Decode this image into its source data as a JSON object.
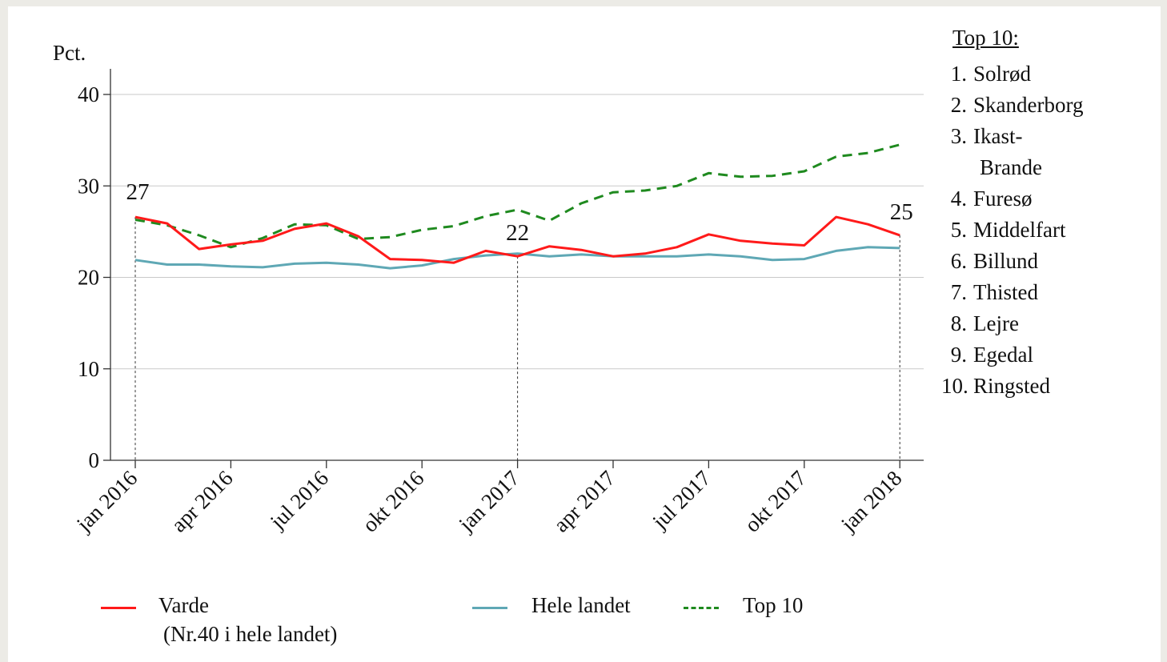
{
  "chart_data": {
    "type": "line",
    "ylabel": "Pct.",
    "ylim": [
      0,
      40
    ],
    "yticks": [
      0,
      10,
      20,
      30,
      40
    ],
    "x": [
      "2016-01",
      "2016-02",
      "2016-03",
      "2016-04",
      "2016-05",
      "2016-06",
      "2016-07",
      "2016-08",
      "2016-09",
      "2016-10",
      "2016-11",
      "2016-12",
      "2017-01",
      "2017-02",
      "2017-03",
      "2017-04",
      "2017-05",
      "2017-06",
      "2017-07",
      "2017-08",
      "2017-09",
      "2017-10",
      "2017-11",
      "2017-12",
      "2018-01"
    ],
    "xtick_labels": [
      "jan 2016",
      "apr 2016",
      "jul 2016",
      "okt 2016",
      "jan 2017",
      "apr 2017",
      "jul 2017",
      "okt 2017",
      "jan 2018"
    ],
    "grid": "horizontal",
    "series": [
      {
        "name": "Varde",
        "style": "solid",
        "color": "#ff1a1a",
        "values": [
          26.6,
          25.9,
          23.1,
          23.6,
          24.0,
          25.3,
          25.9,
          24.5,
          22.0,
          21.9,
          21.6,
          22.9,
          22.3,
          23.4,
          23.0,
          22.3,
          22.6,
          23.3,
          24.7,
          24.0,
          23.7,
          23.5,
          26.6,
          25.8,
          24.6
        ]
      },
      {
        "name": "Hele landet",
        "style": "solid",
        "color": "#5fa8b5",
        "values": [
          21.9,
          21.4,
          21.4,
          21.2,
          21.1,
          21.5,
          21.6,
          21.4,
          21.0,
          21.3,
          22.0,
          22.4,
          22.6,
          22.3,
          22.5,
          22.3,
          22.3,
          22.3,
          22.5,
          22.3,
          21.9,
          22.0,
          22.9,
          23.3,
          23.2
        ]
      },
      {
        "name": "Top 10",
        "style": "dashed",
        "color": "#1f8a1f",
        "values": [
          26.3,
          25.7,
          24.6,
          23.3,
          24.3,
          25.8,
          25.7,
          24.2,
          24.4,
          25.2,
          25.6,
          26.7,
          27.4,
          26.2,
          28.1,
          29.3,
          29.5,
          30.0,
          31.4,
          31.0,
          31.1,
          31.6,
          33.2,
          33.6,
          34.5
        ]
      }
    ],
    "annotations": [
      {
        "x": "2016-01",
        "label": "27"
      },
      {
        "x": "2017-01",
        "label": "22"
      },
      {
        "x": "2018-01",
        "label": "25"
      }
    ]
  },
  "legend": {
    "varde_label": "Varde",
    "varde_sublabel": "(Nr.40 i hele landet)",
    "hele_label": "Hele landet",
    "top10_label": "Top 10"
  },
  "top10": {
    "title": "Top 10:",
    "items": [
      {
        "num": "1.",
        "name": "Solrød"
      },
      {
        "num": "2.",
        "name": "Skanderborg"
      },
      {
        "num": "3.",
        "name": "Ikast-"
      },
      {
        "num": "",
        "name": "Brande"
      },
      {
        "num": "4.",
        "name": "Furesø"
      },
      {
        "num": "5.",
        "name": "Middelfart"
      },
      {
        "num": "6.",
        "name": "Billund"
      },
      {
        "num": "7.",
        "name": "Thisted"
      },
      {
        "num": "8.",
        "name": "Lejre"
      },
      {
        "num": "9.",
        "name": "Egedal"
      },
      {
        "num": "10.",
        "name": "Ringsted"
      }
    ]
  }
}
